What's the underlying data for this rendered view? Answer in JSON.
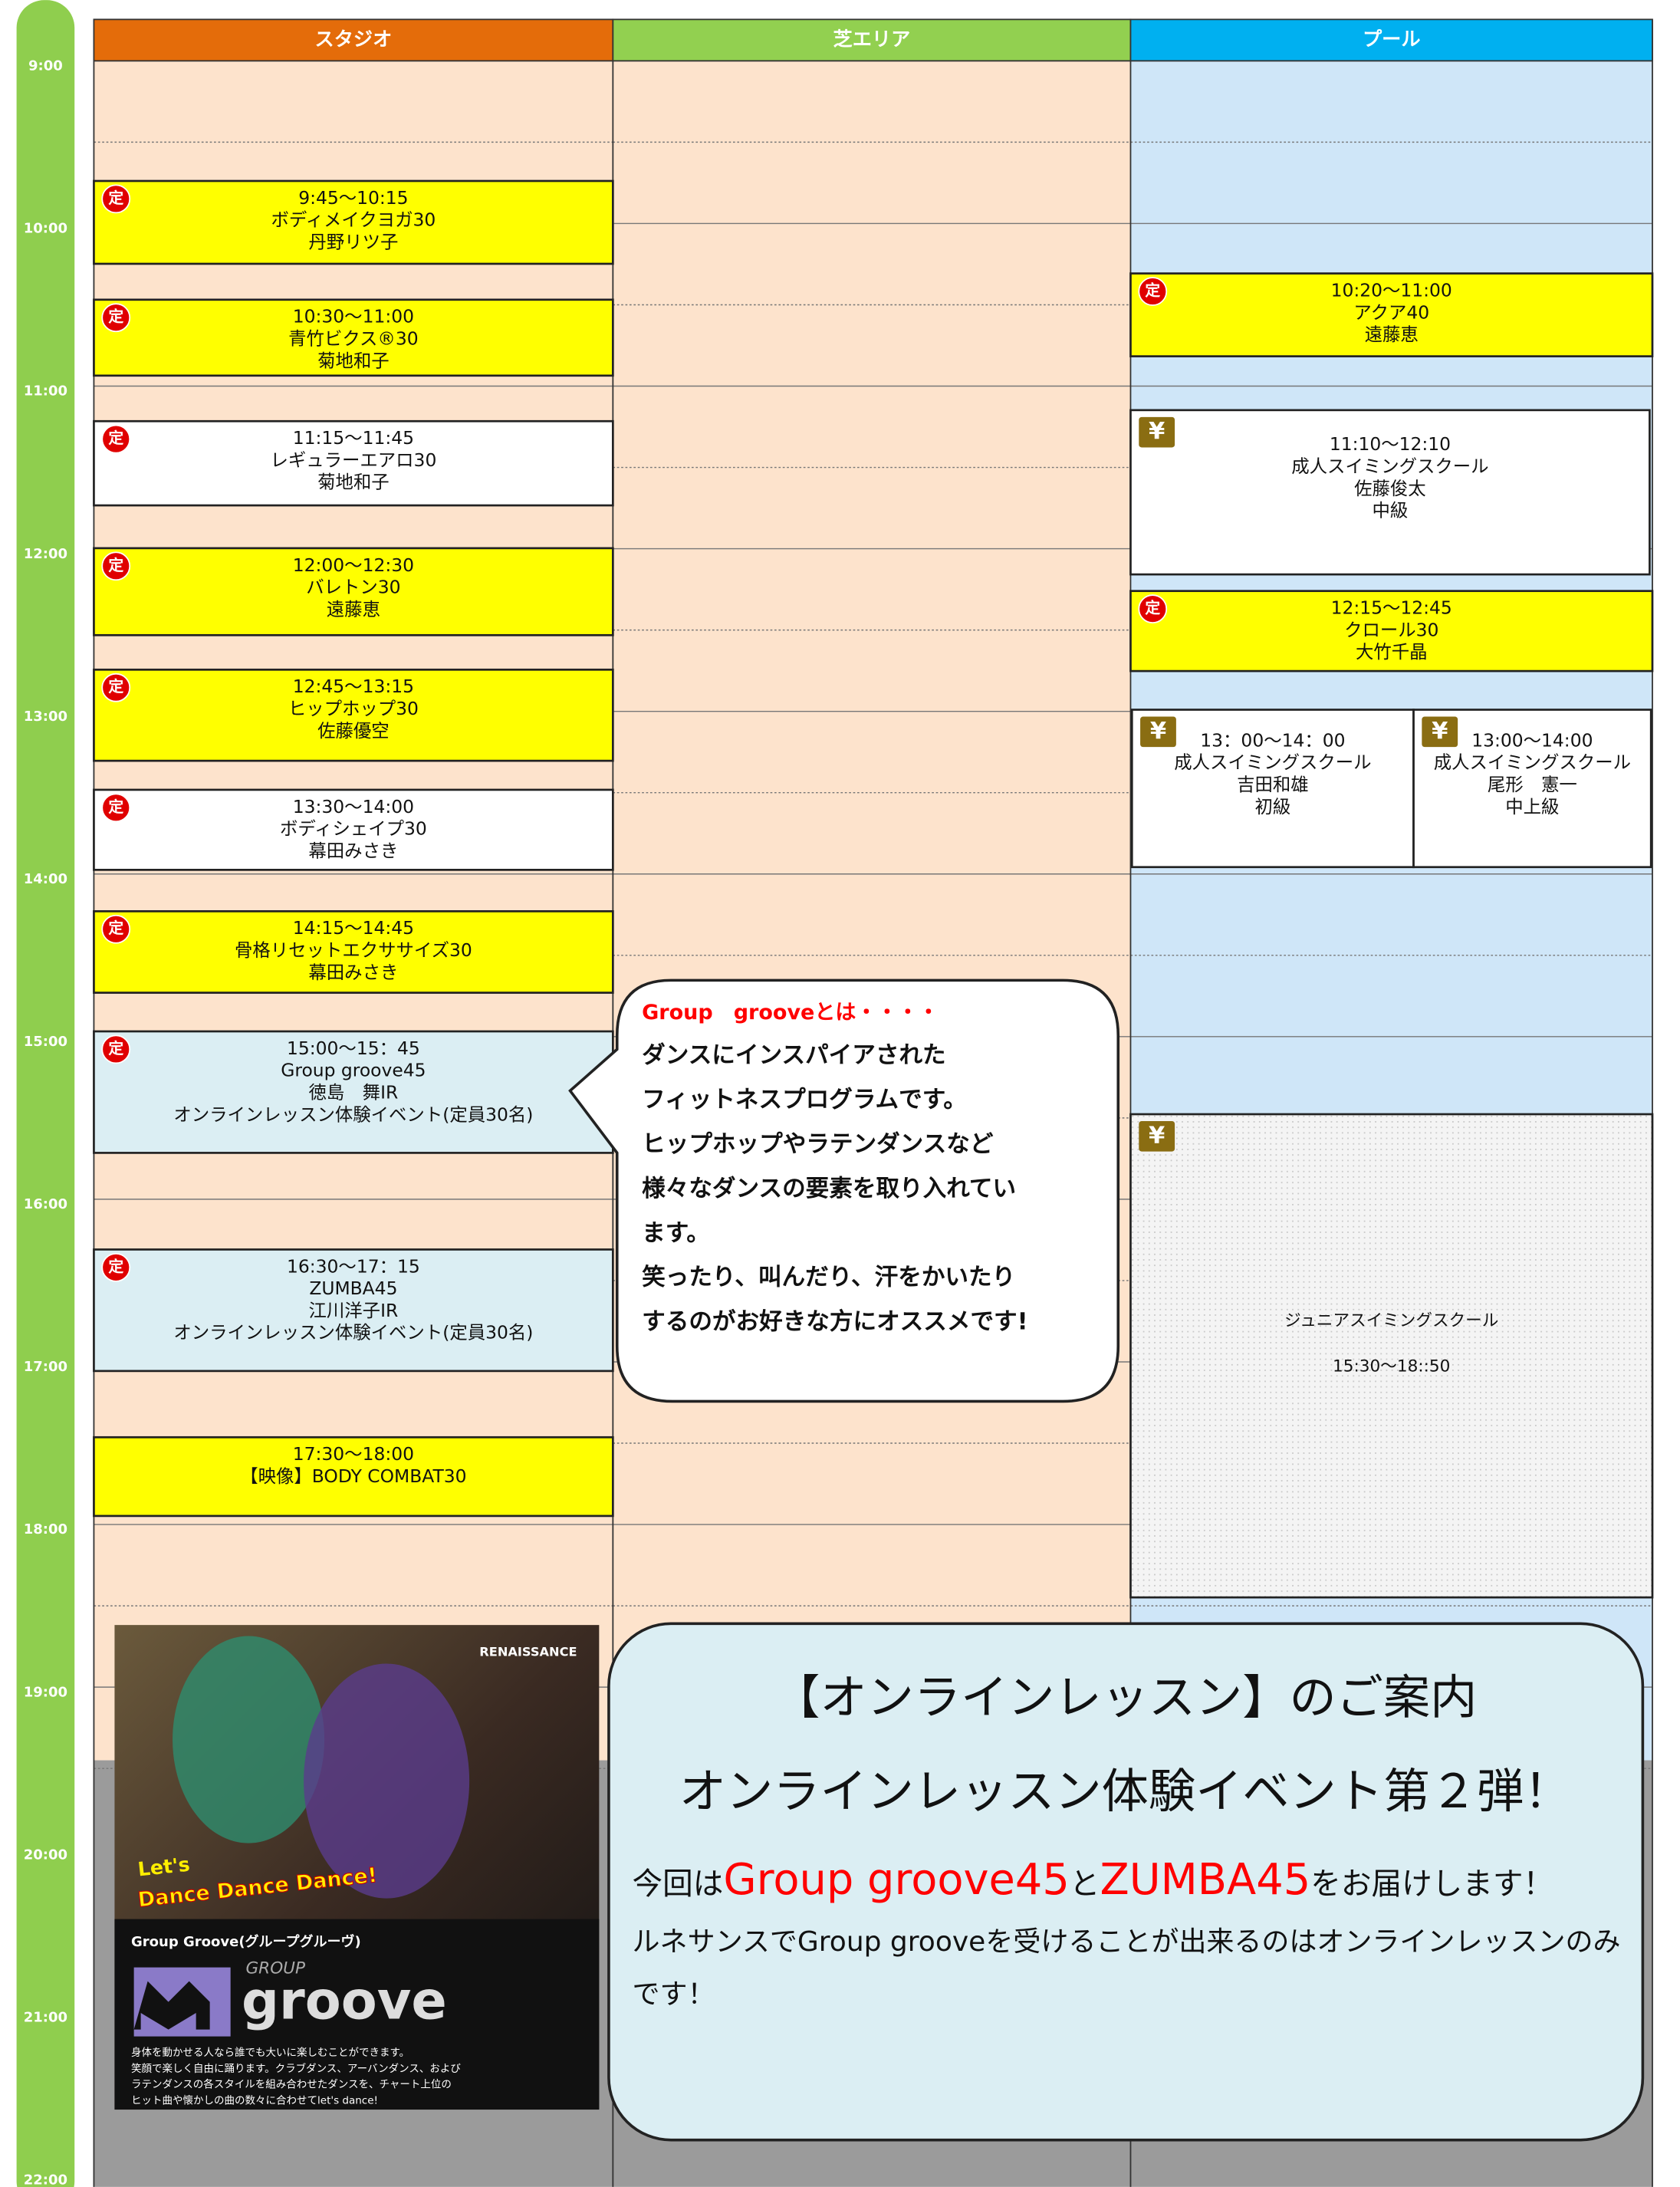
{
  "columns": [
    "スタジオ",
    "芝エリア",
    "プール"
  ],
  "times": [
    "9:00",
    "10:00",
    "11:00",
    "12:00",
    "13:00",
    "14:00",
    "15:00",
    "16:00",
    "17:00",
    "18:00",
    "19:00",
    "20:00",
    "21:00",
    "22:00"
  ],
  "studio_events": [
    {
      "badge": "定",
      "lines": [
        "9:45～10:15",
        "ボディメイクヨガ30",
        "丹野リツ子"
      ]
    },
    {
      "badge": "定",
      "lines": [
        "10:30～11:00",
        "青竹ビクス®30",
        "菊地和子"
      ]
    },
    {
      "badge": "定",
      "lines": [
        "11:15～11:45",
        "レギュラーエアロ30",
        "菊地和子"
      ]
    },
    {
      "badge": "定",
      "lines": [
        "12:00～12:30",
        "バレトン30",
        "遠藤恵"
      ]
    },
    {
      "badge": "定",
      "lines": [
        "12:45～13:15",
        "ヒップホップ30",
        "佐藤優空"
      ]
    },
    {
      "badge": "定",
      "lines": [
        "13:30～14:00",
        "ボディシェイプ30",
        "幕田みさき"
      ]
    },
    {
      "badge": "定",
      "lines": [
        "14:15～14:45",
        "骨格リセットエクササイズ30",
        "幕田みさき"
      ]
    },
    {
      "badge": "定",
      "lines": [
        "15:00～15：45",
        "Group groove45",
        "徳島　舞IR",
        "オンラインレッスン体験イベント(定員30名)"
      ]
    },
    {
      "badge": "定",
      "lines": [
        "16:30～17：15",
        "ZUMBA45",
        "江川洋子IR",
        "オンラインレッスン体験イベント(定員30名)"
      ]
    },
    {
      "lines": [
        "17:30～18:00",
        "【映像】BODY COMBAT30"
      ]
    }
  ],
  "pool_events": [
    {
      "badge": "定",
      "lines": [
        "10:20～11:00",
        "アクア40",
        "遠藤恵"
      ]
    },
    {
      "badge": "¥",
      "lines": [
        "11:10～12:10",
        "成人スイミングスクール",
        "佐藤俊太",
        "中級"
      ]
    },
    {
      "badge": "定",
      "lines": [
        "12:15～12:45",
        "クロール30",
        "大竹千晶"
      ]
    },
    {
      "badge": "¥",
      "lines": [
        "13：00～14：00",
        "成人スイミングスクール",
        "吉田和雄",
        "初級"
      ]
    },
    {
      "badge": "¥",
      "lines": [
        "13:00～14:00",
        "成人スイミングスクール",
        "尾形　憲一",
        "中上級"
      ]
    },
    {
      "badge": "¥",
      "lines": [
        "ジュニアスイミングスクール",
        "15:30～18::50"
      ]
    }
  ],
  "bubble": {
    "heading": "Group　grooveとは・・・・",
    "lines": [
      "ダンスにインスパイアされた",
      "フィットネスプログラムです。",
      "ヒップホップやラテンダンスなど",
      "様々なダンスの要素を取り入れてい",
      "ます。",
      "笑ったり、叫んだり、汗をかいたり",
      "するのがお好きな方にオススメです!"
    ]
  },
  "info": {
    "title": "【オンラインレッスン】のご案内",
    "subtitle": "オンラインレッスン体験イベント第２弾！",
    "segments": [
      "今回は",
      "Group groove45",
      "と",
      "ZUMBA45",
      "をお届けします！"
    ],
    "note": "ルネサンスでGroup grooveを受けることが出来るのはオンラインレッスンのみです！"
  },
  "poster": {
    "brand": "RENAISSANCE",
    "slogan": [
      "Let's",
      "Dance Dance Dance!"
    ],
    "program": "Group Groove(グループグルーヴ)",
    "logo_small": "GROUP",
    "logo": "groove",
    "description": [
      "身体を動かせる人なら誰でも大いに楽しむことができます。",
      "笑顔で楽しく自由に踊ります。クラブダンス、アーバンダンス、および",
      "ラテンダンスの各スタイルを組み合わせたダンスを、チャート上位の",
      "ヒット曲や懐かしの曲の数々に合わせてlet's dance!"
    ]
  }
}
